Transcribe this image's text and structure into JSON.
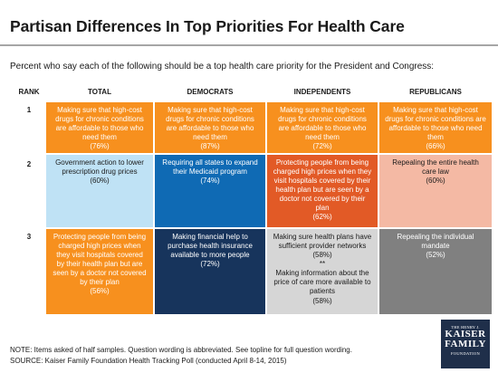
{
  "title": "Partisan Differences In Top Priorities For Health Care",
  "subtitle": "Percent who say each of the following should be a top health care priority for the President and Congress:",
  "note": "NOTE: Items asked of half samples. Question wording is abbreviated.  See topline for full question wording.",
  "source": "SOURCE: Kaiser Family Foundation Health Tracking Poll (conducted April 8-14, 2015)",
  "logo": {
    "line1": "THE HENRY J.",
    "line2": "KAISER",
    "line3": "FAMILY",
    "line4": "FOUNDATION"
  },
  "colors": {
    "orange": "#f7901e",
    "light_blue": "#bfe2f5",
    "blue": "#0f6ab4",
    "dark_orange": "#e25a26",
    "pink": "#f4b9a4",
    "navy": "#17345c",
    "light_gray": "#d6d6d6",
    "gray": "#808080"
  },
  "chart_data": {
    "type": "table",
    "columns": [
      "RANK",
      "TOTAL",
      "DEMOCRATS",
      "INDEPENDENTS",
      "REPUBLICANS"
    ],
    "rows": [
      {
        "rank": "1",
        "cells": [
          {
            "text": "Making sure that high-cost drugs for chronic conditions are affordable to those who need them",
            "pct": "(76%)",
            "value": 76
          },
          {
            "text": "Making sure that high-cost drugs for chronic conditions are affordable to those who need them",
            "pct": "(87%)",
            "value": 87
          },
          {
            "text": "Making sure that high-cost drugs for chronic conditions are affordable to those who need them",
            "pct": "(72%)",
            "value": 72
          },
          {
            "text": "Making sure that high-cost drugs for chronic conditions are affordable to those who need them",
            "pct": "(66%)",
            "value": 66
          }
        ]
      },
      {
        "rank": "2",
        "cells": [
          {
            "text": "Government action to lower prescription drug prices",
            "pct": "(60%)",
            "value": 60
          },
          {
            "text": "Requiring all states to expand their Medicaid program",
            "pct": "(74%)",
            "value": 74
          },
          {
            "text": "Protecting people from being charged high prices when they visit hospitals covered by their health plan but are seen by a doctor not covered by their plan",
            "pct": "(62%)",
            "value": 62
          },
          {
            "text": "Repealing the entire health care law",
            "pct": "(60%)",
            "value": 60
          }
        ]
      },
      {
        "rank": "3",
        "cells": [
          {
            "text": "Protecting people from being charged high prices when they visit hospitals covered by their health plan but are seen by a doctor not covered by their plan",
            "pct": "(56%)",
            "value": 56
          },
          {
            "text": "Making financial help to purchase health insurance available to more people",
            "pct": "(72%)",
            "value": 72
          },
          {
            "text": "Making sure health plans have sufficient provider networks (58%)",
            "pct": "",
            "value": 58,
            "separator": "**",
            "text2": "Making information about the price of care more available to patients",
            "pct2": "(58%)",
            "value2": 58
          },
          {
            "text": "Repealing the individual mandate",
            "pct": "(52%)",
            "value": 52
          }
        ]
      }
    ]
  }
}
